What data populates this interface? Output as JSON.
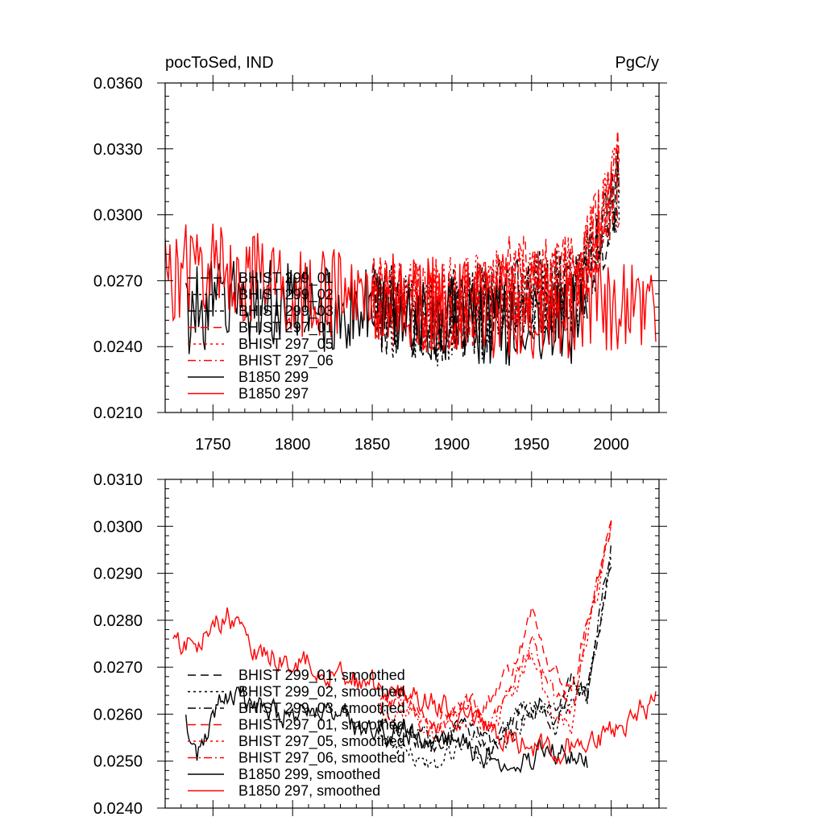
{
  "chart_data": [
    {
      "type": "line",
      "title": "pocToSed, IND",
      "units": "PgC/y",
      "xlim": [
        1720,
        2030
      ],
      "ylim": [
        0.021,
        0.036
      ],
      "x_ticks": [
        1750,
        1800,
        1850,
        1900,
        1950,
        2000
      ],
      "x_tick_labels": [
        "1750",
        "1800",
        "1850",
        "1900",
        "1950",
        "2000"
      ],
      "y_ticks": [
        0.021,
        0.024,
        0.027,
        0.03,
        0.033,
        0.036
      ],
      "y_tick_labels": [
        "0.0210",
        "0.0240",
        "0.0270",
        "0.0300",
        "0.0330",
        "0.0360"
      ],
      "legend": [
        {
          "label": "BHIST 299_01",
          "color": "#000000",
          "dash": "dash"
        },
        {
          "label": "BHIST 299_02",
          "color": "#000000",
          "dash": "dot"
        },
        {
          "label": "BHIST 299_03",
          "color": "#000000",
          "dash": "dashdot"
        },
        {
          "label": "BHIST 297_01",
          "color": "#ff0000",
          "dash": "dash"
        },
        {
          "label": "BHIST 297_05",
          "color": "#ff0000",
          "dash": "dot"
        },
        {
          "label": "BHIST 297_06",
          "color": "#ff0000",
          "dash": "dashdot"
        },
        {
          "label": "B1850 299",
          "color": "#000000",
          "dash": "solid"
        },
        {
          "label": "B1850 297",
          "color": "#ff0000",
          "dash": "solid"
        }
      ],
      "series": [
        {
          "name": "BHIST 299_01",
          "color": "#000000",
          "dash": "dash",
          "x_range": [
            1850,
            2005
          ],
          "anchor_years": [
            1850,
            1880,
            1910,
            1940,
            1960,
            1980,
            1990,
            2000,
            2005
          ],
          "anchor_values": [
            0.0258,
            0.0252,
            0.0256,
            0.0262,
            0.0265,
            0.0272,
            0.0282,
            0.0302,
            0.0312
          ],
          "amplitude": 0.0021
        },
        {
          "name": "BHIST 299_02",
          "color": "#000000",
          "dash": "dot",
          "x_range": [
            1850,
            2005
          ],
          "anchor_years": [
            1850,
            1880,
            1910,
            1940,
            1960,
            1980,
            1990,
            2000,
            2005
          ],
          "anchor_values": [
            0.0257,
            0.0251,
            0.0253,
            0.026,
            0.0264,
            0.027,
            0.0283,
            0.03,
            0.031
          ],
          "amplitude": 0.0021
        },
        {
          "name": "BHIST 299_03",
          "color": "#000000",
          "dash": "dashdot",
          "x_range": [
            1850,
            2005
          ],
          "anchor_years": [
            1850,
            1880,
            1910,
            1940,
            1960,
            1980,
            1990,
            2000,
            2005
          ],
          "anchor_values": [
            0.0259,
            0.0253,
            0.0255,
            0.0261,
            0.0262,
            0.0268,
            0.028,
            0.0298,
            0.0306
          ],
          "amplitude": 0.0021
        },
        {
          "name": "BHIST 297_01",
          "color": "#ff0000",
          "dash": "dash",
          "x_range": [
            1850,
            2005
          ],
          "anchor_years": [
            1850,
            1880,
            1910,
            1940,
            1960,
            1980,
            1990,
            2000,
            2005
          ],
          "anchor_values": [
            0.0262,
            0.0258,
            0.026,
            0.0272,
            0.0268,
            0.0275,
            0.029,
            0.031,
            0.032
          ],
          "amplitude": 0.0021
        },
        {
          "name": "BHIST 297_05",
          "color": "#ff0000",
          "dash": "dot",
          "x_range": [
            1850,
            2005
          ],
          "anchor_years": [
            1850,
            1880,
            1910,
            1940,
            1960,
            1980,
            1990,
            2000,
            2005
          ],
          "anchor_values": [
            0.0263,
            0.0257,
            0.0262,
            0.027,
            0.0266,
            0.0276,
            0.0292,
            0.0312,
            0.0318
          ],
          "amplitude": 0.0021
        },
        {
          "name": "BHIST 297_06",
          "color": "#ff0000",
          "dash": "dashdot",
          "x_range": [
            1850,
            2005
          ],
          "anchor_years": [
            1850,
            1880,
            1910,
            1940,
            1960,
            1980,
            1990,
            2000,
            2005
          ],
          "anchor_values": [
            0.0261,
            0.0259,
            0.0261,
            0.0269,
            0.0265,
            0.0274,
            0.0288,
            0.0309,
            0.0316
          ],
          "amplitude": 0.0021
        },
        {
          "name": "B1850 299",
          "color": "#000000",
          "dash": "solid",
          "x_range": [
            1733,
            1985
          ],
          "anchor_years": [
            1733,
            1760,
            1800,
            1850,
            1900,
            1950,
            1985
          ],
          "anchor_values": [
            0.0255,
            0.0262,
            0.0258,
            0.0256,
            0.0252,
            0.025,
            0.025
          ],
          "amplitude": 0.002
        },
        {
          "name": "B1850 297",
          "color": "#ff0000",
          "dash": "solid",
          "x_range": [
            1720,
            2028
          ],
          "anchor_years": [
            1720,
            1750,
            1800,
            1850,
            1900,
            1950,
            2000,
            2028
          ],
          "anchor_values": [
            0.0272,
            0.0277,
            0.0265,
            0.0262,
            0.0258,
            0.0255,
            0.0258,
            0.0263
          ],
          "amplitude": 0.0022
        }
      ]
    },
    {
      "type": "line",
      "title": "",
      "units": "",
      "xlim": [
        1720,
        2030
      ],
      "ylim": [
        0.024,
        0.031
      ],
      "x_ticks": [
        1750,
        1800,
        1850,
        1900,
        1950,
        2000
      ],
      "y_ticks": [
        0.024,
        0.025,
        0.026,
        0.027,
        0.028,
        0.029,
        0.03,
        0.031
      ],
      "y_tick_labels": [
        "0.0240",
        "0.0250",
        "0.0260",
        "0.0270",
        "0.0280",
        "0.0290",
        "0.0300",
        "0.0310"
      ],
      "legend": [
        {
          "label": "BHIST 299_01, smoothed",
          "color": "#000000",
          "dash": "dash"
        },
        {
          "label": "BHIST 299_02, smoothed",
          "color": "#000000",
          "dash": "dot"
        },
        {
          "label": "BHIST 299_03, smoothed",
          "color": "#000000",
          "dash": "dashdot"
        },
        {
          "label": "BHIST 297_01, smoothed",
          "color": "#ff0000",
          "dash": "dash"
        },
        {
          "label": "BHIST 297_05, smoothed",
          "color": "#ff0000",
          "dash": "dot"
        },
        {
          "label": "BHIST 297_06, smoothed",
          "color": "#ff0000",
          "dash": "dashdot"
        },
        {
          "label": "B1850 299, smoothed",
          "color": "#000000",
          "dash": "solid"
        },
        {
          "label": "B1850 297, smoothed",
          "color": "#ff0000",
          "dash": "solid"
        }
      ],
      "series": [
        {
          "name": "BHIST 299_01, smoothed",
          "color": "#000000",
          "dash": "dash",
          "x_range": [
            1855,
            2000
          ],
          "anchor_years": [
            1855,
            1870,
            1890,
            1910,
            1925,
            1940,
            1955,
            1965,
            1975,
            1985,
            1992,
            2000
          ],
          "anchor_values": [
            0.0258,
            0.0255,
            0.0253,
            0.0257,
            0.0252,
            0.0258,
            0.0262,
            0.0259,
            0.0268,
            0.0262,
            0.0278,
            0.0293
          ],
          "amplitude": 0.0004
        },
        {
          "name": "BHIST 299_02, smoothed",
          "color": "#000000",
          "dash": "dot",
          "x_range": [
            1855,
            2000
          ],
          "anchor_years": [
            1855,
            1870,
            1890,
            1910,
            1925,
            1940,
            1955,
            1965,
            1975,
            1985,
            1992,
            2000
          ],
          "anchor_values": [
            0.0256,
            0.0252,
            0.0249,
            0.0254,
            0.0251,
            0.0256,
            0.0261,
            0.0258,
            0.0263,
            0.0265,
            0.0278,
            0.0295
          ],
          "amplitude": 0.0004
        },
        {
          "name": "BHIST 299_03, smoothed",
          "color": "#000000",
          "dash": "dashdot",
          "x_range": [
            1855,
            2000
          ],
          "anchor_years": [
            1855,
            1870,
            1890,
            1910,
            1925,
            1940,
            1955,
            1965,
            1975,
            1985,
            1992,
            2000
          ],
          "anchor_values": [
            0.0259,
            0.0256,
            0.0255,
            0.0258,
            0.0254,
            0.0259,
            0.0263,
            0.026,
            0.0266,
            0.0264,
            0.028,
            0.0296
          ],
          "amplitude": 0.0004
        },
        {
          "name": "BHIST 297_01, smoothed",
          "color": "#ff0000",
          "dash": "dash",
          "x_range": [
            1855,
            2000
          ],
          "anchor_years": [
            1855,
            1870,
            1890,
            1910,
            1925,
            1940,
            1950,
            1960,
            1975,
            1985,
            1992,
            2000
          ],
          "anchor_values": [
            0.0262,
            0.0265,
            0.0257,
            0.0263,
            0.0262,
            0.0272,
            0.0281,
            0.0272,
            0.0265,
            0.028,
            0.029,
            0.0303
          ],
          "amplitude": 0.0004
        },
        {
          "name": "BHIST 297_05, smoothed",
          "color": "#ff0000",
          "dash": "dot",
          "x_range": [
            1855,
            2000
          ],
          "anchor_years": [
            1855,
            1870,
            1890,
            1910,
            1925,
            1940,
            1950,
            1960,
            1975,
            1985,
            1992,
            2000
          ],
          "anchor_values": [
            0.026,
            0.0262,
            0.0255,
            0.026,
            0.0257,
            0.0266,
            0.0272,
            0.0262,
            0.0258,
            0.0277,
            0.0287,
            0.0301
          ],
          "amplitude": 0.0004
        },
        {
          "name": "BHIST 297_06, smoothed",
          "color": "#ff0000",
          "dash": "dashdot",
          "x_range": [
            1855,
            2000
          ],
          "anchor_years": [
            1855,
            1870,
            1890,
            1910,
            1925,
            1940,
            1950,
            1960,
            1975,
            1985,
            1992,
            2000
          ],
          "anchor_values": [
            0.0261,
            0.0263,
            0.0256,
            0.0262,
            0.0259,
            0.0268,
            0.0276,
            0.0266,
            0.026,
            0.0278,
            0.0288,
            0.03
          ],
          "amplitude": 0.0004
        },
        {
          "name": "B1850 299, smoothed",
          "color": "#000000",
          "dash": "solid",
          "x_range": [
            1733,
            1985
          ],
          "anchor_years": [
            1733,
            1740,
            1755,
            1765,
            1790,
            1820,
            1850,
            1880,
            1910,
            1930,
            1950,
            1970,
            1985
          ],
          "anchor_values": [
            0.0258,
            0.0252,
            0.0262,
            0.0264,
            0.026,
            0.0262,
            0.0256,
            0.0256,
            0.0253,
            0.025,
            0.0251,
            0.0252,
            0.025
          ],
          "amplitude": 0.0005
        },
        {
          "name": "B1850 297, smoothed",
          "color": "#ff0000",
          "dash": "solid",
          "x_range": [
            1725,
            2028
          ],
          "anchor_years": [
            1725,
            1740,
            1760,
            1780,
            1800,
            1830,
            1860,
            1900,
            1940,
            1960,
            1985,
            2000,
            2015,
            2028
          ],
          "anchor_values": [
            0.0274,
            0.0275,
            0.0281,
            0.0273,
            0.0272,
            0.0268,
            0.0265,
            0.0261,
            0.0254,
            0.0253,
            0.0253,
            0.0256,
            0.026,
            0.0263
          ],
          "amplitude": 0.0005
        }
      ]
    }
  ]
}
